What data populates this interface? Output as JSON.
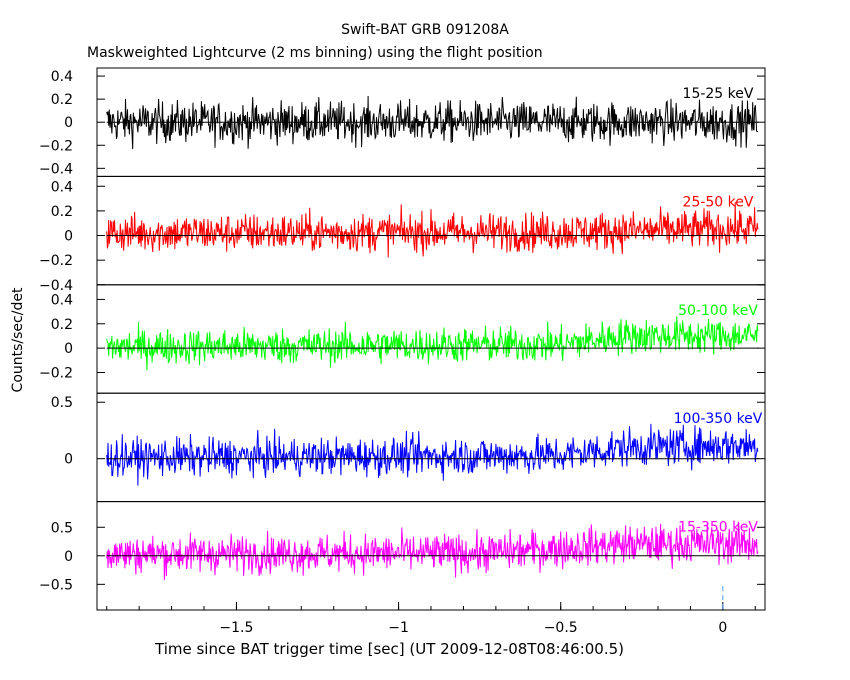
{
  "chart_data": {
    "type": "line",
    "title": "Swift-BAT GRB 091208A",
    "subtitle": "Maskweighted Lightcurve (2 ms binning) using the flight position",
    "xlabel": "Time since BAT trigger time [sec] (UT 2009-12-08T08:46:00.5)",
    "ylabel": "Counts/sec/det",
    "xlim": [
      -1.93,
      0.13
    ],
    "x_ticks": [
      -1.5,
      -1,
      -0.5,
      0
    ],
    "x_tick_labels": [
      "−1.5",
      "−1",
      "−0.5",
      "0"
    ],
    "trigger_marker_x": 0,
    "grid": false,
    "panels": [
      {
        "name": "15-25 keV",
        "color": "#000000",
        "ylim": [
          -0.47,
          0.47
        ],
        "yticks": [
          -0.4,
          -0.2,
          0,
          0.2,
          0.4
        ],
        "ytick_labels": [
          "−0.4",
          "−0.2",
          "0",
          "0.2",
          "0.4"
        ],
        "x_range": [
          -1.9,
          0.11
        ],
        "noise_amplitude": 0.16,
        "trend": [
          [
            -1.9,
            0
          ],
          [
            0.11,
            0
          ]
        ]
      },
      {
        "name": "25-50 keV",
        "color": "#ff0000",
        "ylim": [
          -0.4,
          0.48
        ],
        "yticks": [
          -0.4,
          -0.2,
          0,
          0.2,
          0.4
        ],
        "ytick_labels": [
          "−0.4",
          "−0.2",
          "0",
          "0.2",
          "0.4"
        ],
        "x_range": [
          -1.9,
          0.11
        ],
        "noise_amplitude": 0.14,
        "trend": [
          [
            -1.9,
            0.02
          ],
          [
            -0.5,
            0.03
          ],
          [
            0.11,
            0.06
          ]
        ]
      },
      {
        "name": "50-100 keV",
        "color": "#00ff00",
        "ylim": [
          -0.37,
          0.52
        ],
        "yticks": [
          -0.2,
          0,
          0.2,
          0.4
        ],
        "ytick_labels": [
          "−0.2",
          "0",
          "0.2",
          "0.4"
        ],
        "x_range": [
          -1.9,
          0.11
        ],
        "noise_amplitude": 0.13,
        "trend": [
          [
            -1.9,
            0.01
          ],
          [
            -0.5,
            0.03
          ],
          [
            -0.3,
            0.1
          ],
          [
            0.11,
            0.1
          ]
        ]
      },
      {
        "name": "100-350 keV",
        "color": "#0000ff",
        "ylim": [
          -0.38,
          0.58
        ],
        "yticks": [
          0,
          0.5
        ],
        "ytick_labels": [
          "0",
          "0.5"
        ],
        "x_range": [
          -1.9,
          0.11
        ],
        "noise_amplitude": 0.15,
        "trend": [
          [
            -1.9,
            0.01
          ],
          [
            -0.5,
            0.03
          ],
          [
            -0.3,
            0.1
          ],
          [
            0.11,
            0.12
          ]
        ]
      },
      {
        "name": "15-350 keV",
        "color": "#ff00ff",
        "ylim": [
          -0.95,
          0.95
        ],
        "yticks": [
          -0.5,
          0,
          0.5
        ],
        "ytick_labels": [
          "−0.5",
          "0",
          "0.5"
        ],
        "x_range": [
          -1.9,
          0.11
        ],
        "noise_amplitude": 0.3,
        "trend": [
          [
            -1.9,
            0.03
          ],
          [
            -0.75,
            0.05
          ],
          [
            -0.3,
            0.2
          ],
          [
            0.11,
            0.22
          ]
        ]
      }
    ]
  }
}
